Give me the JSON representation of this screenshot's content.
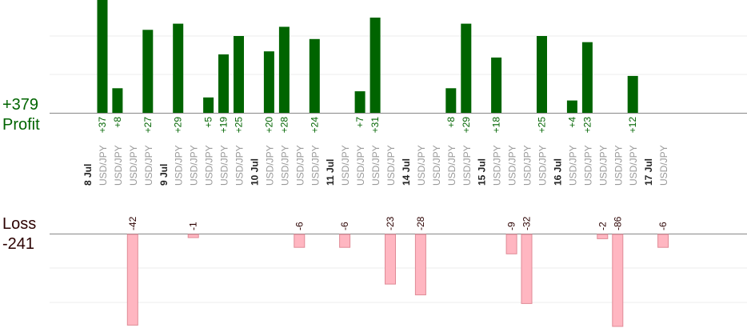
{
  "summary": {
    "profit_total": "+379",
    "profit_label": "Profit",
    "loss_label": "Loss",
    "loss_total": "-241"
  },
  "colors": {
    "profit_bar": "#006400",
    "loss_bar": "#ffb6c1",
    "loss_bar_stroke": "#e08a96",
    "profit_text": "#006400",
    "loss_text": "#2b0000",
    "grid": "#eeeeee",
    "axis": "#888888",
    "pair_text": "#999999",
    "date_text": "#222222"
  },
  "chart_data": {
    "type": "bar",
    "xlabel": "",
    "ylabel": "",
    "grid": true,
    "slots": [
      {
        "kind": "date",
        "label": "8 Jul"
      },
      {
        "kind": "trade",
        "label": "USD/JPY",
        "value": 37,
        "value_label": "+37"
      },
      {
        "kind": "trade",
        "label": "USD/JPY",
        "value": 8,
        "value_label": "+8"
      },
      {
        "kind": "trade",
        "label": "USD/JPY",
        "value": -42,
        "value_label": "-42"
      },
      {
        "kind": "trade",
        "label": "USD/JPY",
        "value": 27,
        "value_label": "+27"
      },
      {
        "kind": "date",
        "label": "9 Jul"
      },
      {
        "kind": "trade",
        "label": "USD/JPY",
        "value": 29,
        "value_label": "+29"
      },
      {
        "kind": "trade",
        "label": "USD/JPY",
        "value": -1,
        "value_label": "-1"
      },
      {
        "kind": "trade",
        "label": "USD/JPY",
        "value": 5,
        "value_label": "+5"
      },
      {
        "kind": "trade",
        "label": "USD/JPY",
        "value": 19,
        "value_label": "+19"
      },
      {
        "kind": "trade",
        "label": "USD/JPY",
        "value": 25,
        "value_label": "+25"
      },
      {
        "kind": "date",
        "label": "10 Jul"
      },
      {
        "kind": "trade",
        "label": "USD/JPY",
        "value": 20,
        "value_label": "+20"
      },
      {
        "kind": "trade",
        "label": "USD/JPY",
        "value": 28,
        "value_label": "+28"
      },
      {
        "kind": "trade",
        "label": "USD/JPY",
        "value": -6,
        "value_label": "-6"
      },
      {
        "kind": "trade",
        "label": "USD/JPY",
        "value": 24,
        "value_label": "+24"
      },
      {
        "kind": "date",
        "label": "11 Jul"
      },
      {
        "kind": "trade",
        "label": "USD/JPY",
        "value": -6,
        "value_label": "-6"
      },
      {
        "kind": "trade",
        "label": "USD/JPY",
        "value": 7,
        "value_label": "+7"
      },
      {
        "kind": "trade",
        "label": "USD/JPY",
        "value": 31,
        "value_label": "+31"
      },
      {
        "kind": "trade",
        "label": "USD/JPY",
        "value": -23,
        "value_label": "-23"
      },
      {
        "kind": "date",
        "label": "14 Jul"
      },
      {
        "kind": "trade",
        "label": "USD/JPY",
        "value": -28,
        "value_label": "-28"
      },
      {
        "kind": "trade",
        "label": "USD/JPY",
        "value": 0,
        "value_label": ""
      },
      {
        "kind": "trade",
        "label": "USD/JPY",
        "value": 8,
        "value_label": "+8"
      },
      {
        "kind": "trade",
        "label": "USD/JPY",
        "value": 29,
        "value_label": "+29"
      },
      {
        "kind": "date",
        "label": "15 Jul"
      },
      {
        "kind": "trade",
        "label": "USD/JPY",
        "value": 18,
        "value_label": "+18"
      },
      {
        "kind": "trade",
        "label": "USD/JPY",
        "value": -9,
        "value_label": "-9"
      },
      {
        "kind": "trade",
        "label": "USD/JPY",
        "value": -32,
        "value_label": "-32"
      },
      {
        "kind": "trade",
        "label": "USD/JPY",
        "value": 25,
        "value_label": "+25"
      },
      {
        "kind": "date",
        "label": "16 Jul"
      },
      {
        "kind": "trade",
        "label": "USD/JPY",
        "value": 4,
        "value_label": "+4"
      },
      {
        "kind": "trade",
        "label": "USD/JPY",
        "value": 23,
        "value_label": "+23"
      },
      {
        "kind": "trade",
        "label": "USD/JPY",
        "value": -2,
        "value_label": "-2"
      },
      {
        "kind": "trade",
        "label": "USD/JPY",
        "value": -86,
        "value_label": "-86"
      },
      {
        "kind": "trade",
        "label": "USD/JPY",
        "value": 12,
        "value_label": "+12"
      },
      {
        "kind": "date",
        "label": "17 Jul"
      },
      {
        "kind": "trade",
        "label": "USD/JPY",
        "value": -6,
        "value_label": "-6"
      }
    ]
  }
}
